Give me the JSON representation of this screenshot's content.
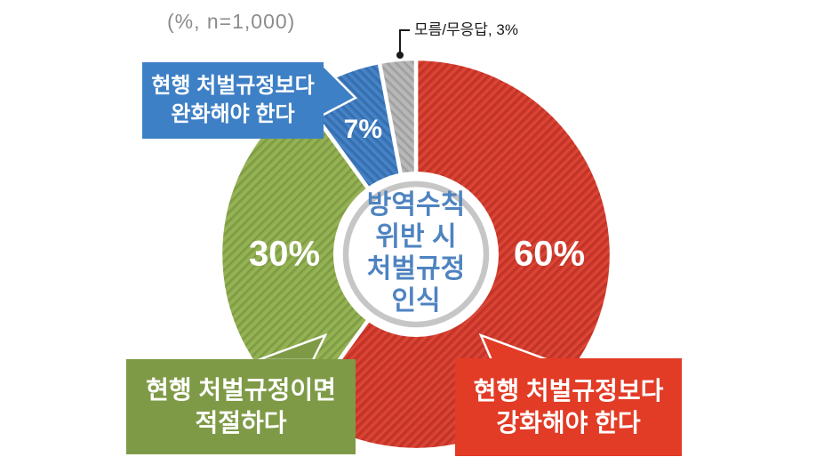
{
  "chart_data": {
    "type": "pie",
    "donut": true,
    "sample_note": "(%, n=1,000)",
    "center_title": "방역수칙 위반 시 처벌규정 인식",
    "center_title_lines": [
      "방역수칙",
      "위반 시",
      "처벌규정",
      "인식"
    ],
    "unit": "%",
    "start": "12-oclock-clockwise",
    "legend_position": "none",
    "slices": [
      {
        "key": "strengthen",
        "label": "현행 처벌규정보다 강화해야 한다",
        "value": 60,
        "color": "#d63b2c"
      },
      {
        "key": "adequate",
        "label": "현행 처벌규정이면 적절하다",
        "value": 30,
        "color": "#8fae4d"
      },
      {
        "key": "relax",
        "label": "현행 처벌규정보다 완화해야 한다",
        "value": 7,
        "color": "#3d7cc2"
      },
      {
        "key": "dk",
        "label": "모름/무응답",
        "value": 3,
        "color": "#b4b4b4"
      }
    ],
    "annotation": "모름/무응답, 3%",
    "hole_ring_color": "#c6c6c6"
  },
  "callouts": {
    "strengthen": {
      "line1": "현행 처벌규정보다",
      "line2": "강화해야 한다",
      "color": "#e23b26"
    },
    "adequate": {
      "line1": "현행 처벌규정이면",
      "line2": "적절하다",
      "color": "#7e9a46"
    },
    "relax": {
      "line1": "현행 처벌규정보다",
      "line2": "완화해야 한다",
      "color": "#3e80c6"
    }
  }
}
